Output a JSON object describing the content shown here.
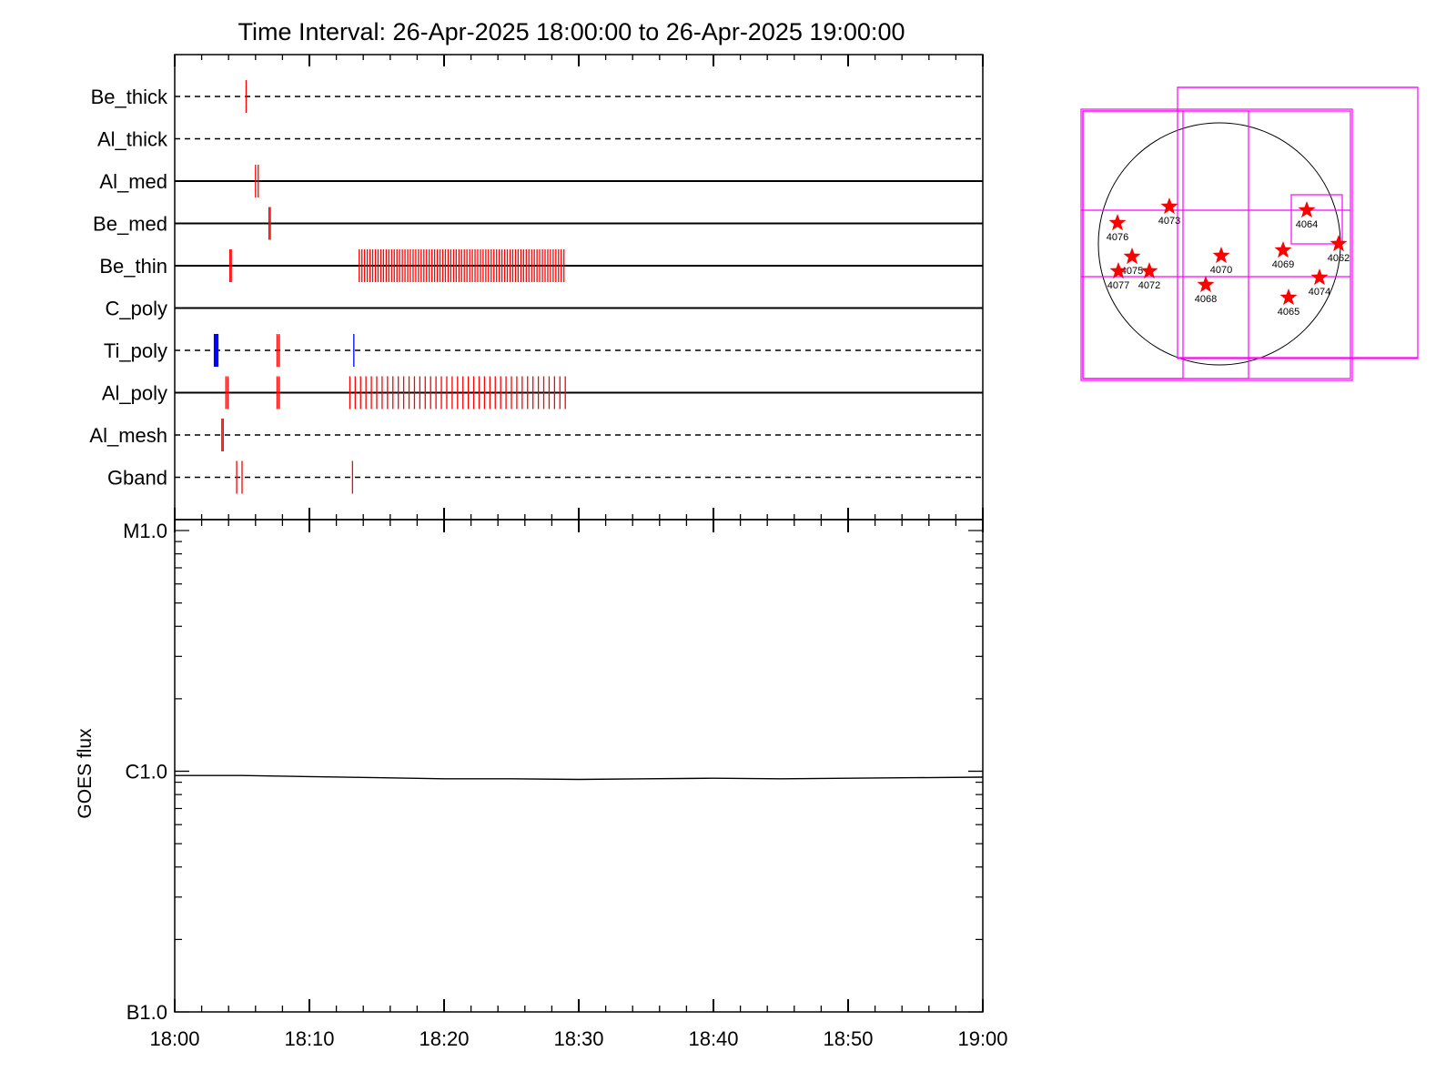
{
  "chart_data": [
    {
      "type": "timeline",
      "title": "Time Interval: 26-Apr-2025 18:00:00 to 26-Apr-2025 19:00:00",
      "x_range_minutes": [
        0,
        60
      ],
      "rows": [
        {
          "label": "Be_thick",
          "line": "dashed",
          "events": [
            {
              "t": 5.3,
              "color": "#ff0000"
            }
          ]
        },
        {
          "label": "Al_thick",
          "line": "dashed",
          "events": []
        },
        {
          "label": "Al_med",
          "line": "solid",
          "events": [
            {
              "t": 6.0,
              "color": "#ff0000"
            },
            {
              "t": 6.2,
              "color": "#ff0000"
            }
          ]
        },
        {
          "label": "Be_med",
          "line": "solid",
          "events": [
            {
              "t": 7.0,
              "color": "#ff0000"
            },
            {
              "t": 7.1,
              "color": "#ff0000"
            }
          ]
        },
        {
          "label": "Be_thin",
          "line": "solid",
          "events": [
            {
              "t": 4.1,
              "color": "#ff0000"
            },
            {
              "t": 4.2,
              "color": "#ff0000"
            }
          ],
          "burst": {
            "start": 13.7,
            "end": 28.9,
            "step": 0.2,
            "color": "#ff0000"
          }
        },
        {
          "label": "C_poly",
          "line": "solid",
          "events": []
        },
        {
          "label": "Ti_poly",
          "line": "dashed",
          "events": [
            {
              "t": 3.0,
              "color": "#0000ff",
              "thick": true
            },
            {
              "t": 3.15,
              "color": "#0000ff",
              "thick": true
            },
            {
              "t": 7.6,
              "color": "#ff0000"
            },
            {
              "t": 7.75,
              "color": "#ff0000"
            },
            {
              "t": 13.3,
              "color": "#0000ff"
            }
          ]
        },
        {
          "label": "Al_poly",
          "line": "solid",
          "events": [
            {
              "t": 3.8,
              "color": "#ff0000"
            },
            {
              "t": 3.95,
              "color": "#ff0000"
            },
            {
              "t": 7.6,
              "color": "#ff0000"
            },
            {
              "t": 7.75,
              "color": "#ff0000"
            }
          ],
          "burst": {
            "start": 13.0,
            "end": 29.0,
            "step": 0.4,
            "color": "#ff0000"
          }
        },
        {
          "label": "Al_mesh",
          "line": "dashed",
          "events": [
            {
              "t": 3.5,
              "color": "#ff0000"
            },
            {
              "t": 3.6,
              "color": "#ff0000"
            }
          ]
        },
        {
          "label": "Gband",
          "line": "dashed",
          "events": [
            {
              "t": 4.6,
              "color": "#ff0000"
            },
            {
              "t": 5.0,
              "color": "#ff0000"
            },
            {
              "t": 13.2,
              "color": "#ff0000"
            }
          ]
        }
      ]
    },
    {
      "type": "line",
      "ylabel": "GOES flux",
      "yscale": "log",
      "ylim": [
        1e-07,
        1e-05
      ],
      "yticks": [
        {
          "value": 1e-05,
          "label": "M1.0"
        },
        {
          "value": 1e-06,
          "label": "C1.0"
        },
        {
          "value": 1e-07,
          "label": "B1.0"
        }
      ],
      "xticks": [
        "18:00",
        "18:10",
        "18:20",
        "18:30",
        "18:40",
        "18:50",
        "19:00"
      ],
      "series": [
        {
          "x": [
            0,
            5,
            10,
            15,
            20,
            25,
            30,
            35,
            40,
            45,
            50,
            55,
            60
          ],
          "y": [
            9.6e-07,
            9.6e-07,
            9.5e-07,
            9.4e-07,
            9.3e-07,
            9.3e-07,
            9.25e-07,
            9.3e-07,
            9.35e-07,
            9.3e-07,
            9.35e-07,
            9.4e-07,
            9.45e-07
          ],
          "color": "#000000"
        }
      ]
    },
    {
      "type": "solar_disk",
      "regions": [
        {
          "label": "4076"
        },
        {
          "label": "4073"
        },
        {
          "label": "4064"
        },
        {
          "label": "4062"
        },
        {
          "label": "4075"
        },
        {
          "label": "4072"
        },
        {
          "label": "4077"
        },
        {
          "label": "4070"
        },
        {
          "label": "4068"
        },
        {
          "label": "4069"
        },
        {
          "label": "4074"
        },
        {
          "label": "4065"
        }
      ],
      "colors": {
        "star": "#ff0000",
        "box": "#ff00ff",
        "disk": "#000000"
      }
    }
  ]
}
